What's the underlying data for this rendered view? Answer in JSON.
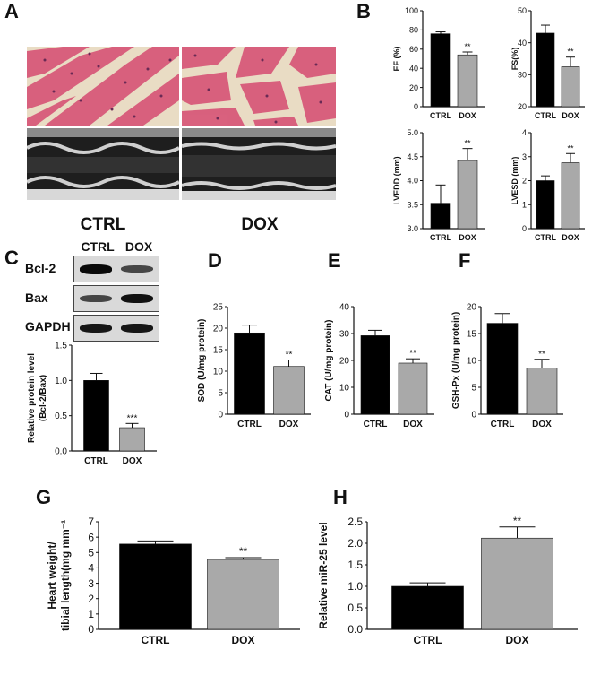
{
  "panels": {
    "A": "A",
    "B": "B",
    "C": "C",
    "D": "D",
    "E": "E",
    "F": "F",
    "G": "G",
    "H": "H"
  },
  "panelA": {
    "ctrl_label": "CTRL",
    "dox_label": "DOX"
  },
  "western_blot": {
    "lanes": [
      "CTRL",
      "DOX"
    ],
    "bands": [
      {
        "name": "Bcl-2",
        "intensity": [
          1.0,
          0.55
        ]
      },
      {
        "name": "Bax",
        "intensity": [
          0.55,
          0.95
        ]
      },
      {
        "name": "GAPDH",
        "intensity": [
          0.9,
          0.9
        ]
      }
    ]
  },
  "colors": {
    "ctrl_bar": "#000000",
    "dox_bar": "#a9a9a9",
    "axis": "#111111",
    "histo_tissue": "#d85a7a",
    "histo_bg": "#e9dcc4"
  },
  "chart_data": [
    {
      "id": "B1",
      "type": "bar",
      "categories": [
        "CTRL",
        "DOX"
      ],
      "values": [
        76,
        54
      ],
      "errors": [
        2,
        3
      ],
      "sig": [
        "",
        "**"
      ],
      "ylabel": "EF (%)",
      "ylim": [
        0,
        100
      ],
      "yticks": [
        0,
        20,
        40,
        60,
        80,
        100
      ],
      "grid": false
    },
    {
      "id": "B2",
      "type": "bar",
      "categories": [
        "CTRL",
        "DOX"
      ],
      "values": [
        43,
        32.5
      ],
      "errors": [
        2.5,
        3
      ],
      "sig": [
        "",
        "**"
      ],
      "ylabel": "FS(%)",
      "ylim": [
        20,
        50
      ],
      "yticks": [
        20,
        30,
        40,
        50
      ],
      "grid": false
    },
    {
      "id": "B3",
      "type": "bar",
      "categories": [
        "CTRL",
        "DOX"
      ],
      "values": [
        3.53,
        4.42
      ],
      "errors": [
        0.38,
        0.25
      ],
      "sig": [
        "",
        "**"
      ],
      "ylabel": "LVEDD (mm)",
      "ylim": [
        3.0,
        5.0
      ],
      "yticks": [
        "3.0",
        "3.5",
        "4.0",
        "4.5",
        "5.0"
      ],
      "grid": false
    },
    {
      "id": "B4",
      "type": "bar",
      "categories": [
        "CTRL",
        "DOX"
      ],
      "values": [
        2.0,
        2.75
      ],
      "errors": [
        0.2,
        0.38
      ],
      "sig": [
        "",
        "**"
      ],
      "ylabel": "LVESD (mm)",
      "ylim": [
        0,
        4
      ],
      "yticks": [
        0,
        1,
        2,
        3,
        4
      ],
      "grid": false
    },
    {
      "id": "C",
      "type": "bar",
      "categories": [
        "CTRL",
        "DOX"
      ],
      "values": [
        1.0,
        0.33
      ],
      "errors": [
        0.1,
        0.06
      ],
      "sig": [
        "",
        "***"
      ],
      "ylabel": "Relative protein level",
      "ylabel2": "(Bcl-2/Bax)",
      "ylim": [
        0,
        1.5
      ],
      "yticks": [
        "0.0",
        "0.5",
        "1.0",
        "1.5"
      ],
      "grid": false
    },
    {
      "id": "D",
      "type": "bar",
      "categories": [
        "CTRL",
        "DOX"
      ],
      "values": [
        18.9,
        11.1
      ],
      "errors": [
        1.8,
        1.5
      ],
      "sig": [
        "",
        "**"
      ],
      "ylabel": "SOD (U/mg protein)",
      "ylim": [
        0,
        25
      ],
      "yticks": [
        0,
        5,
        10,
        15,
        20,
        25
      ],
      "grid": false
    },
    {
      "id": "E",
      "type": "bar",
      "categories": [
        "CTRL",
        "DOX"
      ],
      "values": [
        29.2,
        19.0
      ],
      "errors": [
        2.0,
        1.6
      ],
      "sig": [
        "",
        "**"
      ],
      "ylabel": "CAT (U/mg protein)",
      "ylim": [
        0,
        40
      ],
      "yticks": [
        0,
        10,
        20,
        30,
        40
      ],
      "grid": false
    },
    {
      "id": "F",
      "type": "bar",
      "categories": [
        "CTRL",
        "DOX"
      ],
      "values": [
        16.9,
        8.6
      ],
      "errors": [
        1.8,
        1.6
      ],
      "sig": [
        "",
        "**"
      ],
      "ylabel": "GSH-Px  (U/mg protein)",
      "ylim": [
        0,
        20
      ],
      "yticks": [
        0,
        5,
        10,
        15,
        20
      ],
      "grid": false
    },
    {
      "id": "G",
      "type": "bar",
      "categories": [
        "CTRL",
        "DOX"
      ],
      "values": [
        5.55,
        4.55
      ],
      "errors": [
        0.2,
        0.12
      ],
      "sig": [
        "",
        "**"
      ],
      "ylabel": "Heart weight/",
      "ylabel2": "tibial length(mg mm⁻¹",
      "ylim": [
        0,
        7
      ],
      "yticks": [
        0,
        1,
        2,
        3,
        4,
        5,
        6,
        7
      ],
      "grid": false
    },
    {
      "id": "H",
      "type": "bar",
      "categories": [
        "CTRL",
        "DOX"
      ],
      "values": [
        1.0,
        2.12
      ],
      "errors": [
        0.08,
        0.26
      ],
      "sig": [
        "",
        "**"
      ],
      "ylabel": "Relative miR-25 level",
      "ylim": [
        0,
        2.5
      ],
      "yticks": [
        "0.0",
        "0.5",
        "1.0",
        "1.5",
        "2.0",
        "2.5"
      ],
      "grid": false
    }
  ]
}
